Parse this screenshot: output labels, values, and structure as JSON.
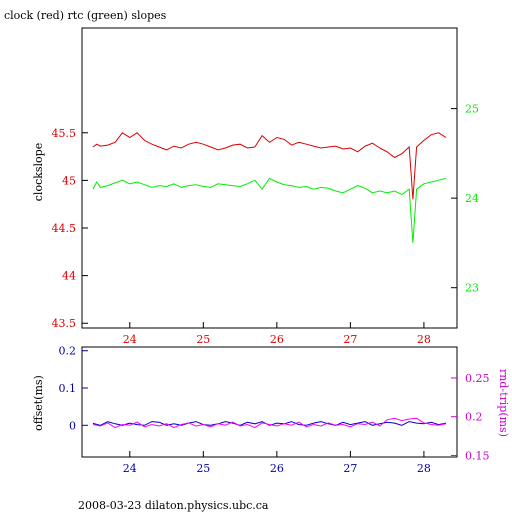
{
  "chart_data": [
    {
      "type": "line",
      "title": "clock (red) rtc (green) slopes",
      "ylabel": "clockslope",
      "xlim": [
        23.35,
        28.45
      ],
      "ylim": [
        43.45,
        46.6
      ],
      "y2lim": [
        22.55,
        25.9
      ],
      "x_ticks": [
        "24",
        "25",
        "26",
        "27",
        "28"
      ],
      "y_ticks": [
        "43.5",
        "44",
        "44.5",
        "45",
        "45.5"
      ],
      "y2_ticks": [
        "23",
        "24",
        "25"
      ],
      "grid": false,
      "colors": {
        "clock": "#dd0000",
        "rtc": "#00ee00",
        "axis": "#000000"
      },
      "series": [
        {
          "name": "clock (red)",
          "axis": "left",
          "x": [
            23.5,
            23.55,
            23.6,
            23.7,
            23.8,
            23.9,
            24.0,
            24.1,
            24.2,
            24.3,
            24.4,
            24.5,
            24.6,
            24.7,
            24.8,
            24.9,
            25.0,
            25.1,
            25.2,
            25.3,
            25.4,
            25.5,
            25.6,
            25.7,
            25.8,
            25.9,
            26.0,
            26.1,
            26.2,
            26.3,
            26.4,
            26.5,
            26.6,
            26.7,
            26.8,
            26.9,
            27.0,
            27.1,
            27.2,
            27.3,
            27.4,
            27.5,
            27.6,
            27.7,
            27.8,
            27.85,
            27.9,
            28.0,
            28.1,
            28.2,
            28.3
          ],
          "values": [
            45.35,
            45.38,
            45.36,
            45.37,
            45.4,
            45.5,
            45.45,
            45.5,
            45.42,
            45.38,
            45.35,
            45.32,
            45.36,
            45.34,
            45.38,
            45.4,
            45.38,
            45.35,
            45.32,
            45.34,
            45.37,
            45.38,
            45.34,
            45.35,
            45.47,
            45.4,
            45.45,
            45.43,
            45.37,
            45.4,
            45.38,
            45.36,
            45.34,
            45.35,
            45.36,
            45.33,
            45.34,
            45.3,
            45.36,
            45.39,
            45.34,
            45.3,
            45.24,
            45.28,
            45.35,
            44.8,
            45.35,
            45.42,
            45.48,
            45.5,
            45.45
          ]
        },
        {
          "name": "rtc (green)",
          "axis": "right",
          "x": [
            23.5,
            23.55,
            23.6,
            23.7,
            23.8,
            23.9,
            24.0,
            24.1,
            24.2,
            24.3,
            24.4,
            24.5,
            24.6,
            24.7,
            24.8,
            24.9,
            25.0,
            25.1,
            25.2,
            25.3,
            25.4,
            25.5,
            25.6,
            25.7,
            25.8,
            25.9,
            26.0,
            26.1,
            26.2,
            26.3,
            26.4,
            26.5,
            26.6,
            26.7,
            26.8,
            26.9,
            27.0,
            27.1,
            27.2,
            27.3,
            27.4,
            27.5,
            27.6,
            27.7,
            27.8,
            27.85,
            27.9,
            28.0,
            28.1,
            28.2,
            28.3
          ],
          "values": [
            24.1,
            24.18,
            24.12,
            24.14,
            24.17,
            24.2,
            24.16,
            24.18,
            24.15,
            24.12,
            24.14,
            24.13,
            24.16,
            24.12,
            24.14,
            24.15,
            24.13,
            24.12,
            24.16,
            24.15,
            24.14,
            24.13,
            24.16,
            24.2,
            24.1,
            24.22,
            24.18,
            24.15,
            24.14,
            24.12,
            24.13,
            24.1,
            24.12,
            24.11,
            24.08,
            24.06,
            24.1,
            24.14,
            24.11,
            24.06,
            24.08,
            24.06,
            24.08,
            24.04,
            24.1,
            23.5,
            24.1,
            24.16,
            24.18,
            24.2,
            24.22
          ]
        }
      ]
    },
    {
      "type": "line",
      "ylabel": "offset(ms)",
      "y2label": "rnd-trip(ms)",
      "xlim": [
        23.35,
        28.45
      ],
      "ylim": [
        -0.085,
        0.21
      ],
      "y2lim": [
        0.148,
        0.29
      ],
      "x_ticks": [
        "24",
        "25",
        "26",
        "27",
        "28"
      ],
      "y_ticks": [
        "0",
        "0.1",
        "0.2"
      ],
      "y2_ticks": [
        "0.15",
        "0.2",
        "0.25"
      ],
      "grid": false,
      "colors": {
        "offset": "#0000cc",
        "rndtrip": "#ff00ff",
        "axis_left": "#0000aa",
        "axis_right": "#cc00cc"
      },
      "series": [
        {
          "name": "offset",
          "axis": "left",
          "x": [
            23.5,
            23.6,
            23.7,
            23.8,
            23.9,
            24.0,
            24.1,
            24.2,
            24.3,
            24.4,
            24.5,
            24.6,
            24.7,
            24.8,
            24.9,
            25.0,
            25.1,
            25.2,
            25.3,
            25.4,
            25.5,
            25.6,
            25.7,
            25.8,
            25.9,
            26.0,
            26.1,
            26.2,
            26.3,
            26.4,
            26.5,
            26.6,
            26.7,
            26.8,
            26.9,
            27.0,
            27.1,
            27.2,
            27.3,
            27.4,
            27.5,
            27.6,
            27.7,
            27.8,
            27.9,
            28.0,
            28.1,
            28.2,
            28.3
          ],
          "values": [
            0.005,
            0.0,
            0.01,
            0.004,
            0.0,
            0.006,
            0.002,
            0.0,
            0.01,
            0.008,
            0.0,
            0.004,
            0.0,
            0.006,
            0.01,
            0.002,
            0.0,
            0.004,
            0.01,
            0.006,
            0.0,
            0.008,
            0.004,
            0.01,
            0.0,
            0.006,
            0.004,
            0.01,
            0.002,
            0.0,
            0.006,
            0.01,
            0.004,
            0.0,
            0.008,
            0.002,
            0.006,
            0.01,
            0.0,
            0.004,
            0.008,
            0.006,
            0.0,
            0.01,
            0.006,
            0.004,
            0.008,
            0.002,
            0.006
          ]
        },
        {
          "name": "rnd-trip",
          "axis": "right",
          "x": [
            23.5,
            23.6,
            23.7,
            23.8,
            23.9,
            24.0,
            24.1,
            24.2,
            24.3,
            24.4,
            24.5,
            24.6,
            24.7,
            24.8,
            24.9,
            25.0,
            25.1,
            25.2,
            25.3,
            25.4,
            25.5,
            25.6,
            25.7,
            25.8,
            25.9,
            26.0,
            26.1,
            26.2,
            26.3,
            26.4,
            26.5,
            26.6,
            26.7,
            26.8,
            26.9,
            27.0,
            27.1,
            27.2,
            27.3,
            27.4,
            27.5,
            27.6,
            27.7,
            27.8,
            27.9,
            28.0,
            28.1,
            28.2,
            28.3
          ],
          "values": [
            0.19,
            0.188,
            0.192,
            0.186,
            0.19,
            0.189,
            0.193,
            0.187,
            0.19,
            0.188,
            0.191,
            0.186,
            0.19,
            0.192,
            0.188,
            0.19,
            0.187,
            0.191,
            0.189,
            0.193,
            0.188,
            0.19,
            0.186,
            0.192,
            0.19,
            0.188,
            0.191,
            0.189,
            0.193,
            0.187,
            0.19,
            0.188,
            0.192,
            0.189,
            0.19,
            0.187,
            0.191,
            0.19,
            0.193,
            0.188,
            0.196,
            0.198,
            0.195,
            0.197,
            0.198,
            0.192,
            0.19,
            0.189,
            0.191
          ]
        }
      ]
    }
  ],
  "footer": "2008-03-23  dilaton.physics.ubc.ca"
}
